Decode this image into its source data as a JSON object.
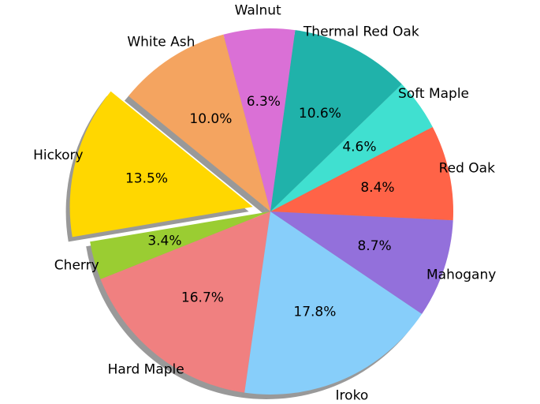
{
  "chart_data": {
    "type": "pie",
    "categories": [
      "Hickory",
      "Cherry",
      "Hard Maple",
      "Iroko",
      "Mahogany",
      "Red Oak",
      "Soft Maple",
      "Thermal Red Oak",
      "Walnut",
      "White Ash"
    ],
    "values": [
      13.5,
      3.4,
      16.7,
      17.8,
      8.7,
      8.4,
      4.6,
      10.6,
      6.3,
      10.0
    ],
    "value_labels": [
      "13.5%",
      "3.4%",
      "16.7%",
      "17.8%",
      "8.7%",
      "8.4%",
      "4.6%",
      "10.6%",
      "6.3%",
      "10.0%"
    ],
    "colors": [
      "#ffd700",
      "#9acd32",
      "#f08080",
      "#87cefa",
      "#9370db",
      "#ff6347",
      "#40e0d0",
      "#20b2aa",
      "#da70d6",
      "#f4a460"
    ],
    "explode": [
      "Hickory"
    ],
    "shadow": true
  }
}
